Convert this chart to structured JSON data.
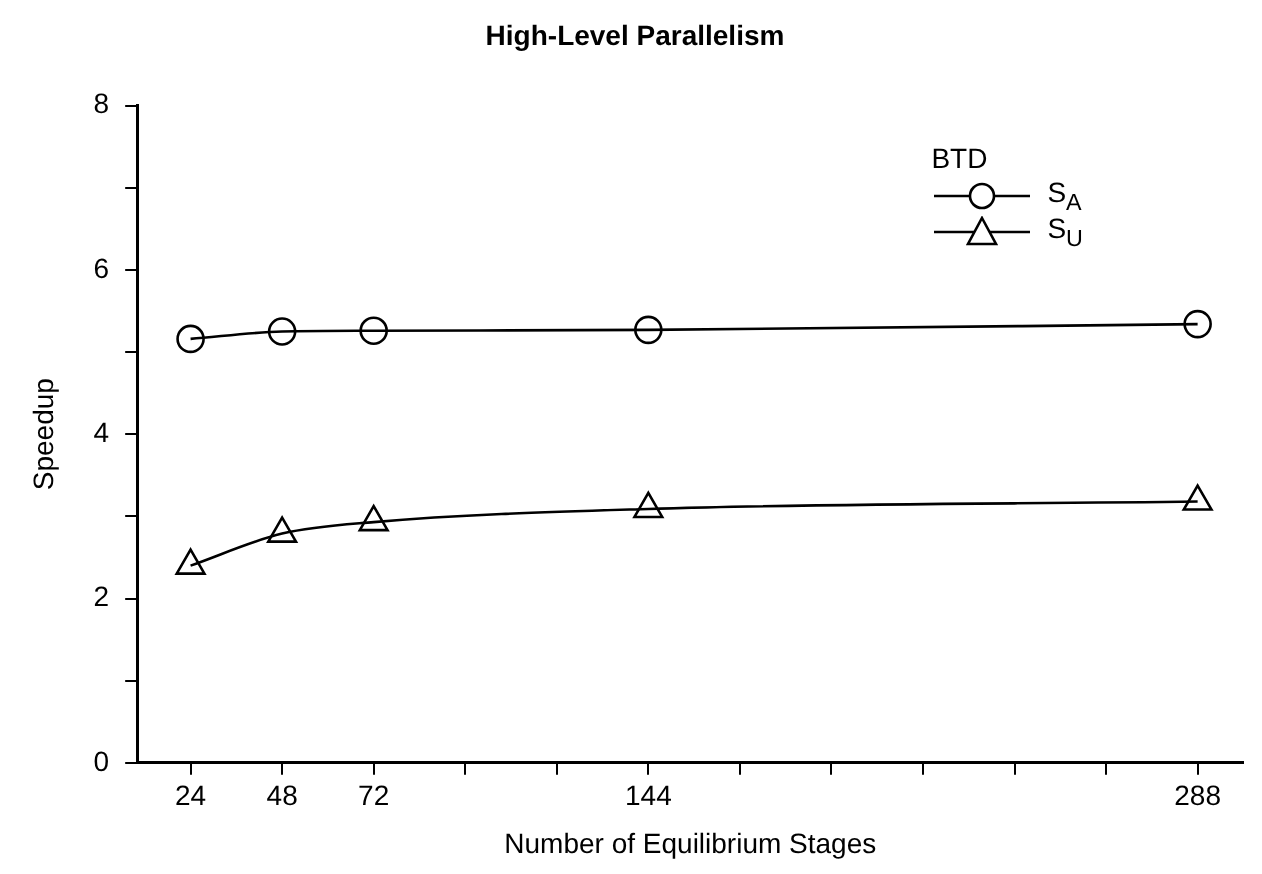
{
  "chart_data": {
    "type": "line",
    "title": "High-Level Parallelism",
    "xlabel": "Number of Equilibrium Stages",
    "ylabel": "Speedup",
    "legend_title": "BTD",
    "legend": "top right",
    "grid": false,
    "x": [
      24,
      48,
      72,
      144,
      288
    ],
    "xlim": [
      10,
      300
    ],
    "xticks": [
      24,
      48,
      72,
      {
        "value": 96,
        "label": null
      },
      {
        "value": 120,
        "label": null
      },
      144,
      {
        "value": 168,
        "label": null
      },
      {
        "value": 192,
        "label": null
      },
      {
        "value": 216,
        "label": null
      },
      {
        "value": 240,
        "label": null
      },
      {
        "value": 264,
        "label": null
      },
      288
    ],
    "ylim": [
      0,
      8
    ],
    "yticks": [
      0,
      {
        "value": 1,
        "label": null
      },
      2,
      {
        "value": 3,
        "label": null
      },
      4,
      {
        "value": 5,
        "label": null
      },
      6,
      {
        "value": 7,
        "label": null
      },
      8
    ],
    "series": [
      {
        "name": "S$_{A}$",
        "color": "#000000",
        "marker": "circle",
        "values": [
          5.16,
          5.25,
          5.26,
          5.27,
          5.34
        ]
      },
      {
        "name": "S$_{U}$",
        "color": "#000000",
        "marker": "triangle",
        "values": [
          2.4,
          2.79,
          2.93,
          3.09,
          3.18
        ]
      }
    ]
  }
}
